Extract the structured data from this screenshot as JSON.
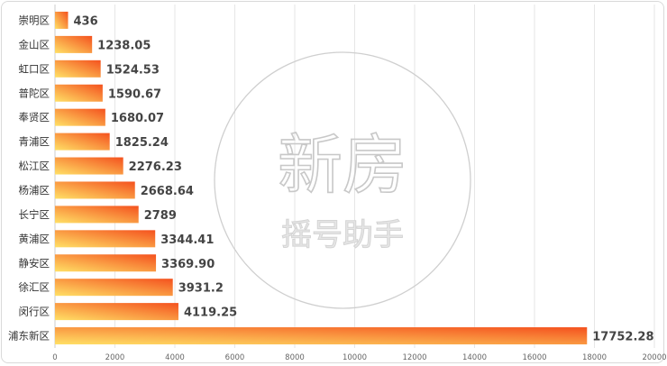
{
  "chart_data": {
    "type": "bar",
    "orientation": "horizontal",
    "categories": [
      "崇明区",
      "金山区",
      "虹口区",
      "普陀区",
      "奉贤区",
      "青浦区",
      "松江区",
      "杨浦区",
      "长宁区",
      "黄浦区",
      "静安区",
      "徐汇区",
      "闵行区",
      "浦东新区"
    ],
    "values": [
      436,
      1238.05,
      1524.53,
      1590.67,
      1680.07,
      1825.24,
      2276.23,
      2668.64,
      2789,
      3344.41,
      3369.9,
      3931.2,
      4119.25,
      17752.28
    ],
    "value_labels": [
      "436",
      "1238.05",
      "1524.53",
      "1590.67",
      "1680.07",
      "1825.24",
      "2276.23",
      "2668.64",
      "2789",
      "3344.41",
      "3369.90",
      "3931.2",
      "4119.25",
      "17752.28"
    ],
    "xlim": [
      0,
      20000
    ],
    "x_ticks": [
      "0",
      "2000",
      "4000",
      "6000",
      "8000",
      "10000",
      "12000",
      "14000",
      "16000",
      "18000",
      "20000"
    ],
    "grid": true,
    "bar_gradient": [
      "#ffe066",
      "#f4511e"
    ],
    "title": "",
    "xlabel": "",
    "ylabel": ""
  },
  "watermark": {
    "main": "新房",
    "sub": "摇号助手"
  }
}
